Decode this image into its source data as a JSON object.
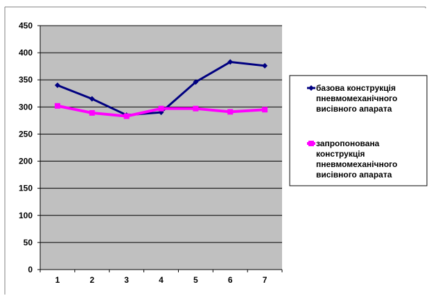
{
  "chart_data": {
    "type": "line",
    "categories": [
      "1",
      "2",
      "3",
      "4",
      "5",
      "6",
      "7"
    ],
    "ylim": [
      0,
      450
    ],
    "yticks": [
      "0",
      "50",
      "100",
      "150",
      "200",
      "250",
      "300",
      "350",
      "400",
      "450"
    ],
    "grid": true,
    "plot_background": "#c0c0c0",
    "legend_position": "right",
    "series": [
      {
        "name": "базова конструкція пневмомеханічного висівного апарата",
        "legend_lines": [
          "базова конструкція",
          "пневмомеханічного",
          "висівного апарата"
        ],
        "color": "#000080",
        "marker": "diamond",
        "values": [
          340,
          315,
          285,
          290,
          346,
          383,
          376
        ]
      },
      {
        "name": "запропонована конструкція пневмомеханічного висівного апарата",
        "legend_lines": [
          "запропонована",
          "конструкція",
          "пневмомеханічного",
          "висівного апарата"
        ],
        "color": "#ff00ff",
        "marker": "square",
        "values": [
          302,
          289,
          283,
          297,
          297,
          291,
          295
        ]
      }
    ]
  }
}
